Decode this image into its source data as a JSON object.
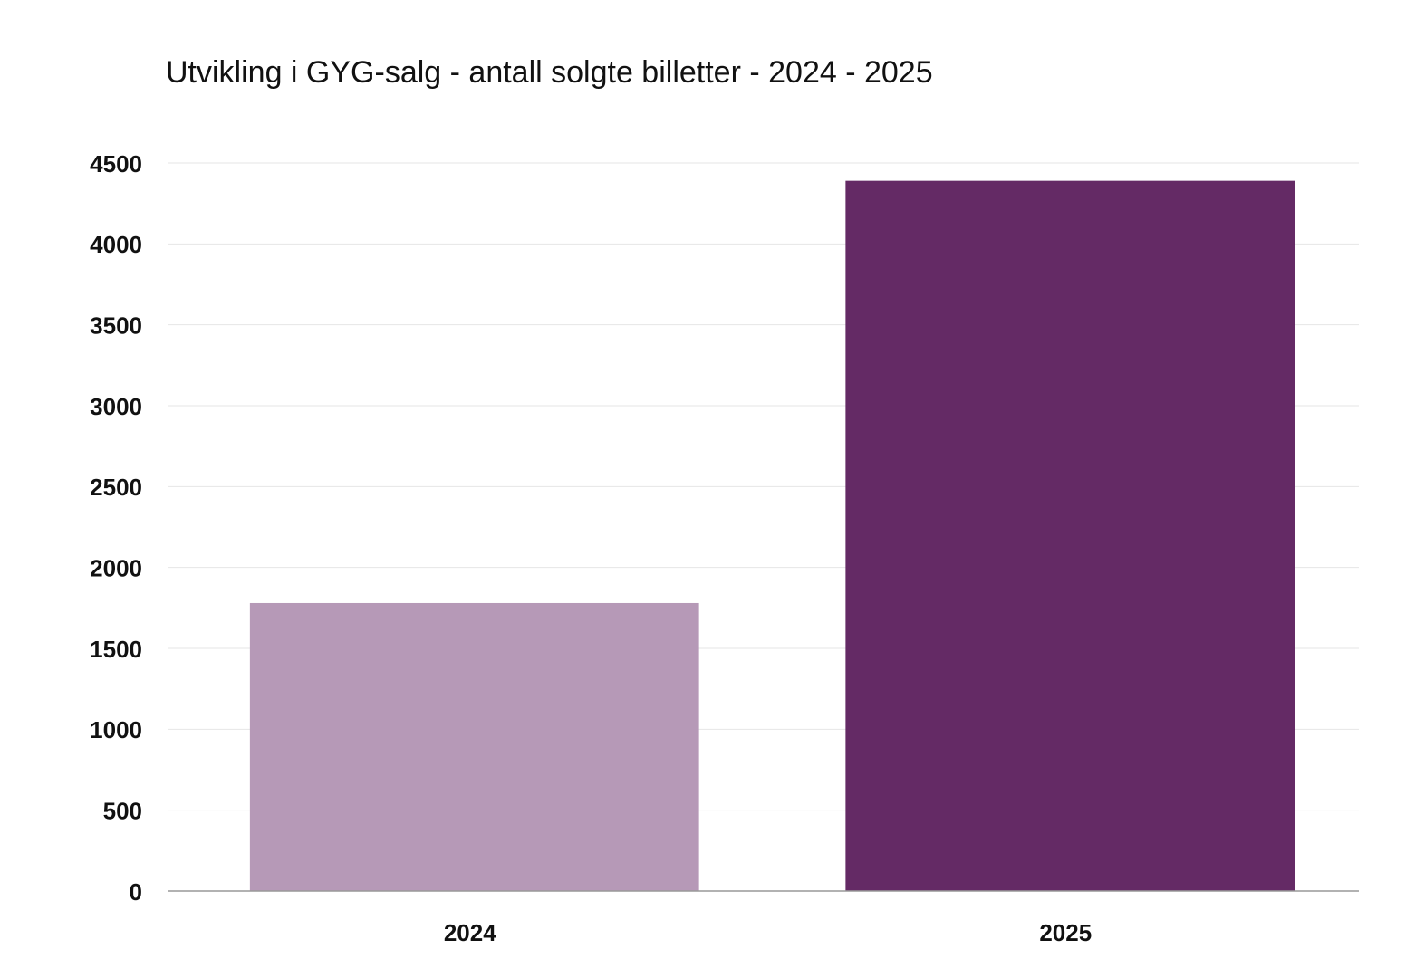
{
  "chart_data": {
    "type": "bar",
    "title": "Utvikling i GYG-salg - antall solgte billetter - 2024 - 2025",
    "categories": [
      "2024",
      "2025"
    ],
    "values": [
      1780,
      4390
    ],
    "colors": [
      "#b699b7",
      "#642a65"
    ],
    "ylim": [
      0,
      4500
    ],
    "yticks": [
      0,
      500,
      1000,
      1500,
      2000,
      2500,
      3000,
      3500,
      4000,
      4500
    ],
    "grid": true
  }
}
